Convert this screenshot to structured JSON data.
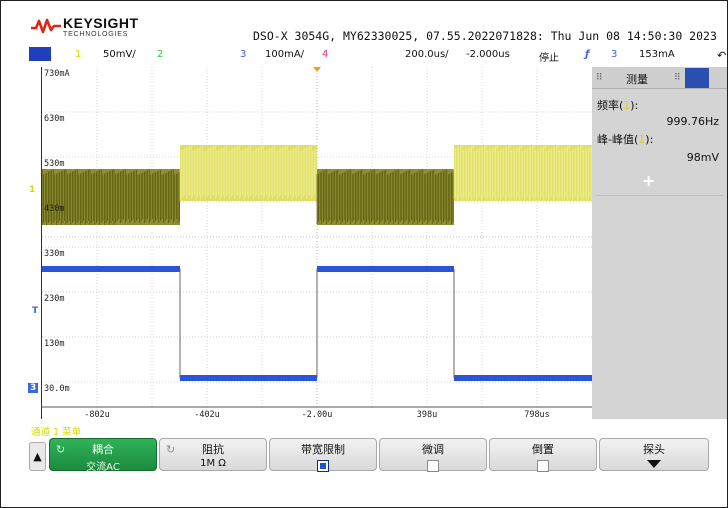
{
  "header": {
    "brand": "KEYSIGHT",
    "brand_sub": "TECHNOLOGIES",
    "model_info": "DSO-X 3054G, MY62330025, 07.55.2022071828: Thu Jun 08 14:50:30 2023"
  },
  "status": {
    "ch1_num": "1",
    "ch1_scale": "50mV/",
    "ch2_num": "2",
    "ch3_num": "3",
    "ch3_scale": "100mA/",
    "ch4_num": "4",
    "timebase": "200.0us/",
    "delay": "-2.000us",
    "run_state": "停止",
    "trig_source": "3",
    "trig_level": "153mA",
    "colors": {
      "ch1": "#d6d600",
      "ch2": "#33cc33",
      "ch3": "#3a66e0",
      "ch4": "#e0338f"
    }
  },
  "grid": {
    "y_labels": [
      "730mA",
      "630m",
      "530m",
      "430m",
      "330m",
      "230m",
      "130m",
      "30.0m"
    ],
    "x_labels": [
      "-802u",
      "-402u",
      "-2.00u",
      "398u",
      "798us"
    ]
  },
  "measure": {
    "title": "测量",
    "m1_label": "频率",
    "m1_value": "999.76Hz",
    "m2_label": "峰-峰值",
    "m2_value": "98mV",
    "add_symbol": "+"
  },
  "side_markers": {
    "ch1": "1",
    "ch3": "3",
    "trig": "T"
  },
  "menu": {
    "title": "通道 1 菜单",
    "coupling_label": "耦合",
    "coupling_value": "交流AC",
    "impedance_label": "阻抗",
    "impedance_value": "1M Ω",
    "bwlimit_label": "带宽限制",
    "fine_label": "微调",
    "invert_label": "倒置",
    "probe_label": "探头",
    "bwlimit_on": true,
    "fine_on": false,
    "invert_on": false
  }
}
